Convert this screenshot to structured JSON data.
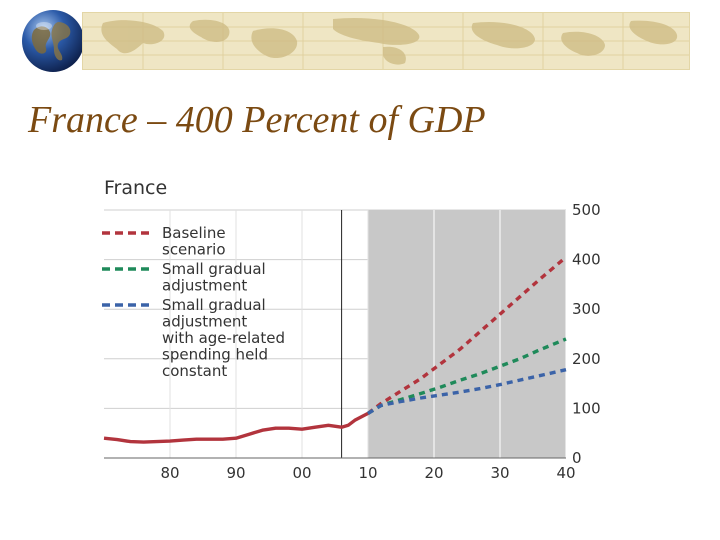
{
  "slide": {
    "title": "France – 400 Percent of GDP"
  },
  "icons": {
    "logo": "globe-icon",
    "banner": "world-map-banner"
  },
  "colors": {
    "title": "#7b4a12",
    "baseline": "#b2343d",
    "small_gradual": "#1f8a5a",
    "age_related": "#3b63a8",
    "historical": "#b2343d",
    "projection_shading": "#c8c8c8"
  },
  "chart_data": {
    "type": "line",
    "title": "France",
    "xlabel": "",
    "ylabel": "",
    "xlim": [
      1970,
      2040
    ],
    "ylim": [
      0,
      500
    ],
    "x_ticks": [
      1980,
      1990,
      2000,
      2010,
      2020,
      2030,
      2040
    ],
    "x_tick_labels": [
      "80",
      "90",
      "00",
      "10",
      "20",
      "30",
      "40"
    ],
    "y_ticks": [
      0,
      100,
      200,
      300,
      400,
      500
    ],
    "y_tick_labels": [
      "0",
      "100",
      "200",
      "300",
      "400",
      "500"
    ],
    "y_axis_side": "right",
    "grid": true,
    "legend_placement": "top-left",
    "projection_start": 2010,
    "vertical_marker_x": 2006,
    "series": [
      {
        "name": "",
        "style": "solid",
        "x": [
          1970,
          1972,
          1974,
          1976,
          1978,
          1980,
          1982,
          1984,
          1986,
          1988,
          1990,
          1992,
          1994,
          1996,
          1998,
          2000,
          2002,
          2004,
          2006,
          2007,
          2008,
          2010
        ],
        "y": [
          40,
          37,
          33,
          32,
          33,
          34,
          36,
          38,
          38,
          38,
          40,
          48,
          56,
          60,
          60,
          58,
          62,
          66,
          62,
          66,
          76,
          90
        ]
      },
      {
        "name": "Baseline scenario",
        "style": "dashed",
        "x": [
          2010,
          2012,
          2015,
          2018,
          2021,
          2024,
          2027,
          2030,
          2033,
          2036,
          2040
        ],
        "y": [
          90,
          110,
          135,
          160,
          190,
          220,
          255,
          290,
          325,
          360,
          405
        ]
      },
      {
        "name": "Small gradual adjustment",
        "style": "dashed",
        "x": [
          2010,
          2012,
          2015,
          2018,
          2021,
          2024,
          2027,
          2030,
          2033,
          2036,
          2040
        ],
        "y": [
          90,
          106,
          118,
          130,
          143,
          157,
          170,
          185,
          200,
          218,
          240
        ]
      },
      {
        "name": "Small gradual adjustment with age-related spending held constant",
        "style": "dashed",
        "x": [
          2010,
          2012,
          2015,
          2018,
          2021,
          2024,
          2027,
          2030,
          2033,
          2036,
          2040
        ],
        "y": [
          90,
          106,
          114,
          121,
          127,
          133,
          140,
          148,
          157,
          166,
          178
        ]
      }
    ],
    "legend": {
      "entries": [
        {
          "series": 1,
          "lines": [
            "Baseline",
            "scenario"
          ]
        },
        {
          "series": 2,
          "lines": [
            "Small gradual",
            "adjustment"
          ]
        },
        {
          "series": 3,
          "lines": [
            "Small gradual",
            "adjustment",
            "with age-related",
            "spending held",
            "constant"
          ]
        }
      ]
    }
  }
}
